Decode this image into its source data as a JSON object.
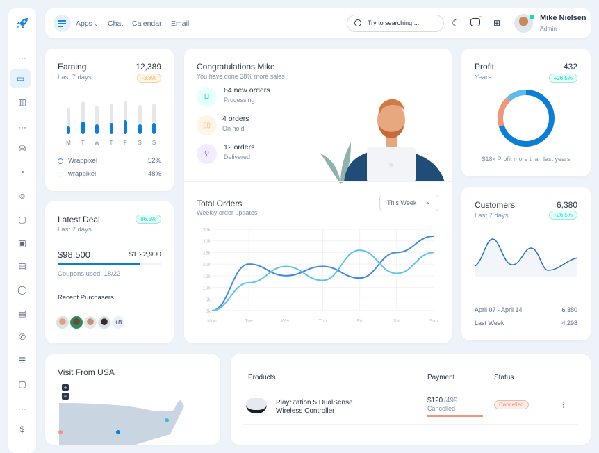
{
  "sidebar": {
    "items": [
      "dots",
      "monitor",
      "chart-bar",
      "dots",
      "database",
      "pie",
      "user-circle",
      "box",
      "wallet",
      "layout",
      "message",
      "note",
      "phone",
      "list",
      "file",
      "dots",
      "dollar"
    ],
    "active": 1
  },
  "header": {
    "nav": [
      "Apps",
      "Chat",
      "Calendar",
      "Email"
    ],
    "search_placeholder": "Try to searching ...",
    "user_name": "Mike Nielsen",
    "user_role": "Admin"
  },
  "earning": {
    "title": "Earning",
    "subtitle": "Last 7 days",
    "value": "12,389",
    "badge": "-3.8%",
    "days": [
      "M",
      "T",
      "W",
      "T",
      "F",
      "S",
      "S"
    ],
    "track": [
      0.8,
      0.97,
      0.85,
      0.92,
      1.0,
      0.88,
      0.92
    ],
    "fill": [
      0.22,
      0.38,
      0.3,
      0.34,
      0.42,
      0.3,
      0.34
    ],
    "legend": [
      {
        "label": "Wrappixel",
        "value": "52%"
      },
      {
        "label": "wrappixel",
        "value": "48%"
      }
    ]
  },
  "deal": {
    "title": "Latest Deal",
    "subtitle": "Last 7 days",
    "badge": "86.5%",
    "amount": "$98,500",
    "target": "$1,22,900",
    "progress": 0.8,
    "coupons": "Coupons used: 18/22",
    "purchasers_title": "Recent Purchasers",
    "more": "+8"
  },
  "congrats": {
    "title": "Congratulations Mike",
    "subtitle": "You have done 38% more sales",
    "items": [
      {
        "title": "64 new orders",
        "sub": "Processing",
        "color": "#e6fffa",
        "icon": "basket"
      },
      {
        "title": "4 orders",
        "sub": "On hold",
        "color": "#fef5e5",
        "icon": "pause"
      },
      {
        "title": "12 orders",
        "sub": "Delivered",
        "color": "#f1ecff",
        "icon": "bike"
      }
    ]
  },
  "orders": {
    "title": "Total Orders",
    "subtitle": "Weekly order updates",
    "filter": "This Week"
  },
  "chart_data": {
    "type": "line",
    "categories": [
      "Mon",
      "Tue",
      "Wed",
      "Thu",
      "Fri",
      "Sat",
      "Sun"
    ],
    "yticks": [
      "0k",
      "5k",
      "10k",
      "15k",
      "20k",
      "25k",
      "30k",
      "35k"
    ],
    "ylim": [
      0,
      35
    ],
    "grid": true,
    "series": [
      {
        "values": [
          0,
          20,
          15,
          19,
          14,
          25,
          32
        ],
        "color": "#3f87e6"
      },
      {
        "values": [
          0,
          12,
          19,
          13,
          26,
          16,
          25
        ],
        "color": "#5cc3f0"
      }
    ]
  },
  "profit": {
    "title": "Profit",
    "subtitle": "Years",
    "value": "432",
    "badge": "+26.5%",
    "caption": "$18k Profit more than last years",
    "segments": [
      {
        "value": 70,
        "color": "#0b7ed8"
      },
      {
        "value": 18,
        "color": "#f0977a"
      },
      {
        "value": 12,
        "color": "#5bbcf0"
      }
    ]
  },
  "customers": {
    "title": "Customers",
    "subtitle": "Last 7 days",
    "value": "6,380",
    "badge": "+26.5%",
    "rows": [
      {
        "label": "April 07 - April 14",
        "value": "6,380"
      },
      {
        "label": "Last Week",
        "value": "4,298"
      }
    ]
  },
  "visit": {
    "title": "Visit From USA",
    "zoom_in": "+",
    "zoom_out": "−"
  },
  "products": {
    "headers": [
      "Products",
      "Payment",
      "Status"
    ],
    "rows": [
      {
        "name1": "PlayStation 5 DualSense",
        "name2": "Wireless Controller",
        "paid": "$120",
        "total": "/499",
        "pay_status": "Cancelled",
        "status": "Cancelled"
      }
    ]
  }
}
